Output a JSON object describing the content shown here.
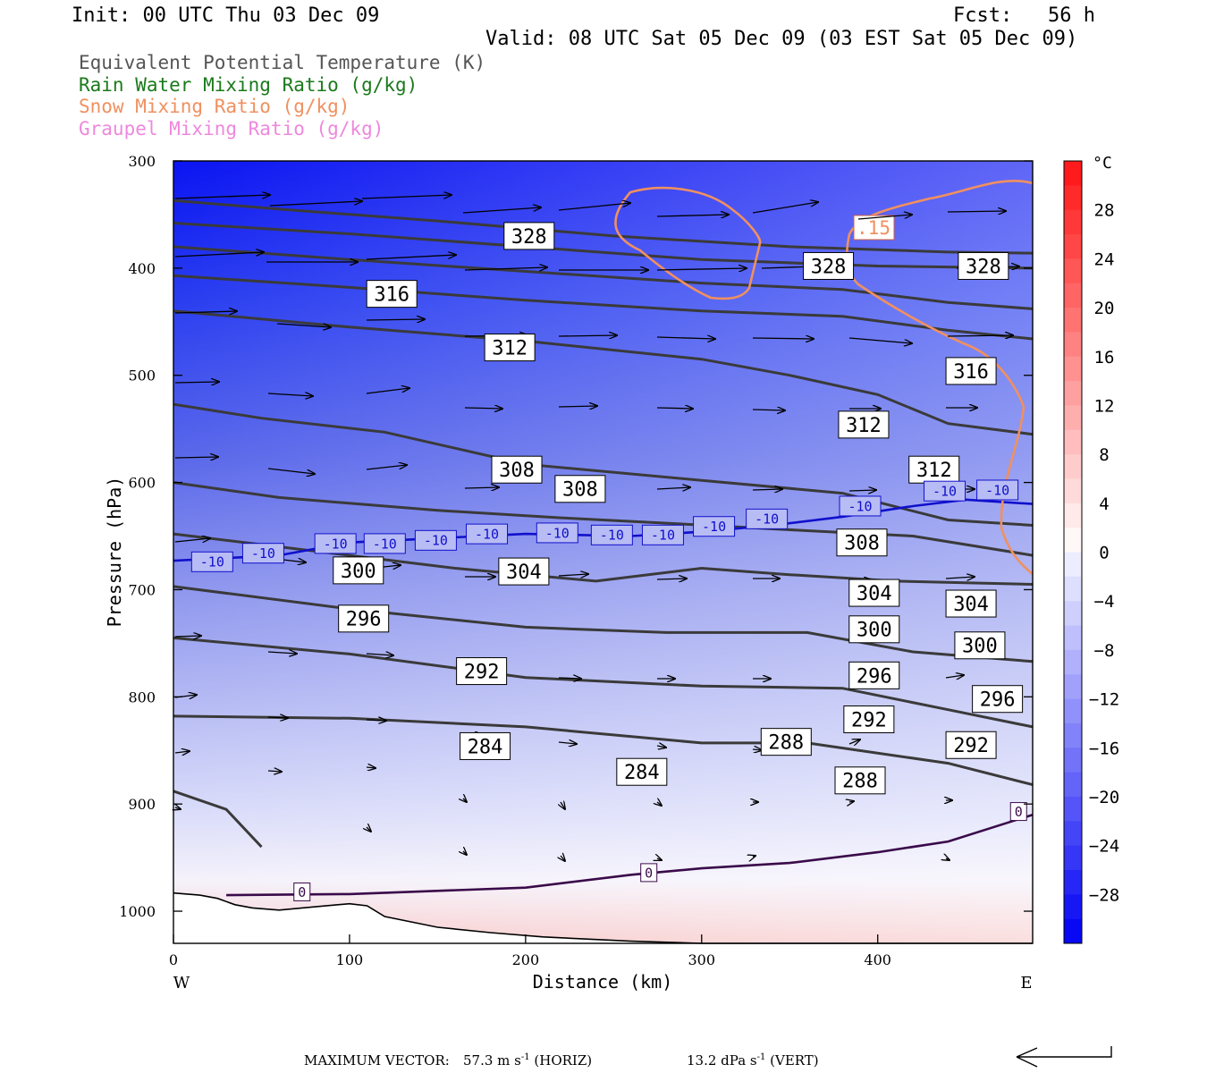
{
  "header": {
    "init": "Init: 00 UTC Thu 03 Dec 09",
    "fcst": "Fcst:   56 h",
    "valid": "Valid: 08 UTC Sat 05 Dec 09 (03 EST Sat 05 Dec 09)"
  },
  "legend": [
    {
      "text": "Equivalent Potential Temperature (K)",
      "color": "#555555"
    },
    {
      "text": "Rain Water Mixing Ratio (g/kg)",
      "color": "#1a7a1a"
    },
    {
      "text": "Snow Mixing Ratio (g/kg)",
      "color": "#f09060"
    },
    {
      "text": "Graupel Mixing Ratio (g/kg)",
      "color": "#ee88dd"
    }
  ],
  "footer": {
    "max_label": "MAXIMUM VECTOR:",
    "horiz": "57.3 m s",
    "horiz_unit": "(HORIZ)",
    "vert": "13.2 dPa s",
    "vert_unit": "(VERT)",
    "exp": "-1"
  },
  "chart_data": {
    "type": "contour",
    "xlabel": "Distance (km)",
    "ylabel": "Pressure (hPa)",
    "x_range": [
      0,
      488
    ],
    "y_range": [
      1030,
      300
    ],
    "x_ticks": [
      0,
      100,
      200,
      300,
      400
    ],
    "y_ticks": [
      300,
      400,
      500,
      600,
      700,
      800,
      900,
      1000
    ],
    "x_end_labels": {
      "left": "W",
      "right": "E"
    },
    "colorbar": {
      "unit": "°C",
      "ticks": [
        28,
        24,
        20,
        16,
        12,
        8,
        4,
        0,
        -4,
        -8,
        -12,
        -16,
        -20,
        -24,
        -28
      ],
      "range": [
        -32,
        32
      ]
    },
    "theta_e_contours": [
      {
        "value": 328,
        "points": [
          [
            0,
            337
          ],
          [
            60,
            345
          ],
          [
            150,
            356
          ],
          [
            250,
            370
          ],
          [
            350,
            380
          ],
          [
            440,
            385
          ],
          [
            488,
            386
          ]
        ]
      },
      {
        "value": 324,
        "points": [
          [
            0,
            358
          ],
          [
            100,
            368
          ],
          [
            200,
            380
          ],
          [
            300,
            392
          ],
          [
            400,
            398
          ],
          [
            488,
            400
          ]
        ]
      },
      {
        "value": 320,
        "points": [
          [
            0,
            380
          ],
          [
            100,
            392
          ],
          [
            200,
            403
          ],
          [
            300,
            414
          ],
          [
            380,
            420
          ],
          [
            440,
            432
          ],
          [
            488,
            438
          ]
        ]
      },
      {
        "value": 316,
        "points": [
          [
            0,
            407
          ],
          [
            100,
            418
          ],
          [
            200,
            430
          ],
          [
            300,
            440
          ],
          [
            380,
            445
          ],
          [
            440,
            458
          ],
          [
            488,
            466
          ]
        ]
      },
      {
        "value": 312,
        "points": [
          [
            0,
            440
          ],
          [
            100,
            455
          ],
          [
            200,
            468
          ],
          [
            300,
            485
          ],
          [
            350,
            500
          ],
          [
            400,
            518
          ],
          [
            440,
            545
          ],
          [
            488,
            555
          ]
        ]
      },
      {
        "value": 308,
        "points": [
          [
            0,
            527
          ],
          [
            50,
            540
          ],
          [
            120,
            553
          ],
          [
            200,
            583
          ],
          [
            300,
            598
          ],
          [
            380,
            610
          ],
          [
            440,
            635
          ],
          [
            488,
            640
          ]
        ]
      },
      {
        "value": 304,
        "points": [
          [
            0,
            600
          ],
          [
            60,
            614
          ],
          [
            150,
            626
          ],
          [
            220,
            633
          ],
          [
            280,
            638
          ],
          [
            360,
            645
          ],
          [
            420,
            650
          ],
          [
            488,
            668
          ]
        ]
      },
      {
        "value": 300,
        "points": [
          [
            0,
            648
          ],
          [
            100,
            668
          ],
          [
            160,
            680
          ],
          [
            240,
            692
          ],
          [
            300,
            680
          ],
          [
            350,
            686
          ],
          [
            410,
            692
          ],
          [
            488,
            695
          ]
        ]
      },
      {
        "value": 296,
        "points": [
          [
            0,
            697
          ],
          [
            100,
            718
          ],
          [
            200,
            735
          ],
          [
            280,
            740
          ],
          [
            360,
            740
          ],
          [
            420,
            758
          ],
          [
            488,
            767
          ]
        ]
      },
      {
        "value": 292,
        "points": [
          [
            0,
            745
          ],
          [
            100,
            760
          ],
          [
            200,
            782
          ],
          [
            300,
            790
          ],
          [
            380,
            792
          ],
          [
            440,
            812
          ],
          [
            488,
            828
          ]
        ]
      },
      {
        "value": 288,
        "points": [
          [
            0,
            818
          ],
          [
            100,
            820
          ],
          [
            200,
            828
          ],
          [
            300,
            843
          ],
          [
            360,
            843
          ],
          [
            440,
            862
          ],
          [
            488,
            882
          ]
        ]
      },
      {
        "value": 284,
        "points": [
          [
            0,
            888
          ],
          [
            30,
            905
          ],
          [
            50,
            940
          ]
        ]
      }
    ],
    "isotherm_minus10": [
      [
        0,
        673
      ],
      [
        60,
        668
      ],
      [
        100,
        656
      ],
      [
        150,
        652
      ],
      [
        200,
        648
      ],
      [
        260,
        650
      ],
      [
        300,
        646
      ],
      [
        340,
        640
      ],
      [
        380,
        632
      ],
      [
        420,
        622
      ],
      [
        450,
        616
      ],
      [
        488,
        620
      ]
    ],
    "isotherm_0": [
      [
        30,
        985
      ],
      [
        100,
        984
      ],
      [
        200,
        978
      ],
      [
        260,
        966
      ],
      [
        300,
        960
      ],
      [
        350,
        955
      ],
      [
        400,
        945
      ],
      [
        440,
        935
      ],
      [
        488,
        910
      ]
    ],
    "snow_contour_label": ".15",
    "contour_labels": [
      {
        "text": "328",
        "x": 202,
        "y": 370
      },
      {
        "text": "328",
        "x": 372,
        "y": 398
      },
      {
        "text": "328",
        "x": 460,
        "y": 398
      },
      {
        "text": "316",
        "x": 124,
        "y": 424
      },
      {
        "text": "312",
        "x": 191,
        "y": 474
      },
      {
        "text": "316",
        "x": 453,
        "y": 496
      },
      {
        "text": "312",
        "x": 392,
        "y": 546
      },
      {
        "text": "308",
        "x": 195,
        "y": 588
      },
      {
        "text": "308",
        "x": 231,
        "y": 606
      },
      {
        "text": "312",
        "x": 432,
        "y": 588
      },
      {
        "text": "308",
        "x": 391,
        "y": 656
      },
      {
        "text": "300",
        "x": 105,
        "y": 682
      },
      {
        "text": "304",
        "x": 199,
        "y": 683
      },
      {
        "text": "304",
        "x": 398,
        "y": 703
      },
      {
        "text": "304",
        "x": 453,
        "y": 713
      },
      {
        "text": "296",
        "x": 108,
        "y": 727
      },
      {
        "text": "300",
        "x": 398,
        "y": 737
      },
      {
        "text": "300",
        "x": 458,
        "y": 752
      },
      {
        "text": "292",
        "x": 175,
        "y": 776
      },
      {
        "text": "296",
        "x": 398,
        "y": 780
      },
      {
        "text": "296",
        "x": 468,
        "y": 802
      },
      {
        "text": "292",
        "x": 395,
        "y": 821
      },
      {
        "text": "292",
        "x": 453,
        "y": 845
      },
      {
        "text": "284",
        "x": 177,
        "y": 846
      },
      {
        "text": "288",
        "x": 348,
        "y": 842
      },
      {
        "text": "284",
        "x": 266,
        "y": 870
      },
      {
        "text": "288",
        "x": 390,
        "y": 878
      }
    ],
    "minus10_labels": [
      {
        "text": "-10",
        "x": 22,
        "y": 674
      },
      {
        "text": "-10",
        "x": 51,
        "y": 666
      },
      {
        "text": "-10",
        "x": 92,
        "y": 657
      },
      {
        "text": "-10",
        "x": 120,
        "y": 657
      },
      {
        "text": "-10",
        "x": 149,
        "y": 654
      },
      {
        "text": "-10",
        "x": 178,
        "y": 648
      },
      {
        "text": "-10",
        "x": 218,
        "y": 647
      },
      {
        "text": "-10",
        "x": 249,
        "y": 649
      },
      {
        "text": "-10",
        "x": 278,
        "y": 649
      },
      {
        "text": "-10",
        "x": 307,
        "y": 641
      },
      {
        "text": "-10",
        "x": 337,
        "y": 634
      },
      {
        "text": "-10",
        "x": 390,
        "y": 622
      },
      {
        "text": "-10",
        "x": 438,
        "y": 608
      },
      {
        "text": "-10",
        "x": 468,
        "y": 607
      }
    ],
    "zero_labels": [
      {
        "text": "0",
        "x": 73,
        "y": 982
      },
      {
        "text": "0",
        "x": 270,
        "y": 964
      },
      {
        "text": "0",
        "x": 480,
        "y": 907
      }
    ]
  }
}
